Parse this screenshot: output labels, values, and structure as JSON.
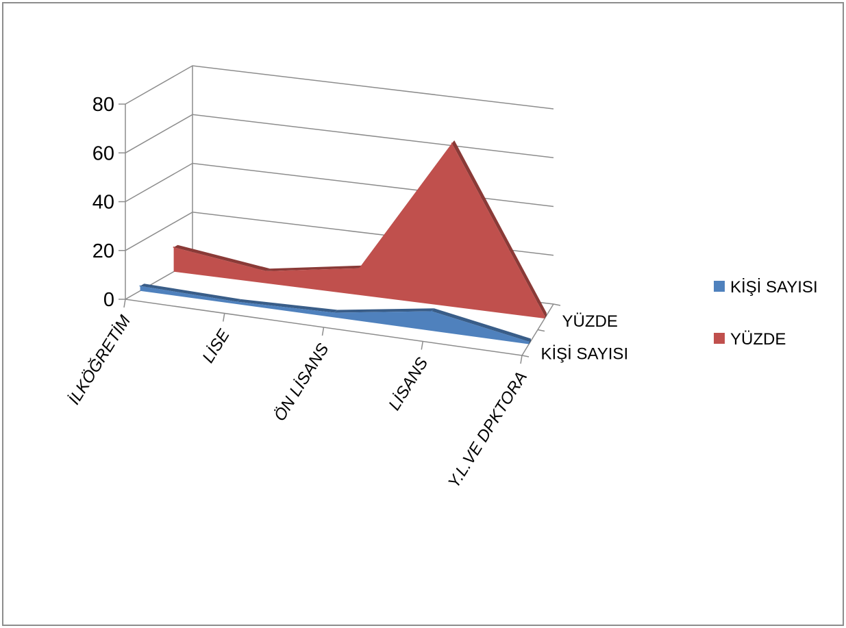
{
  "chart_data": {
    "type": "area",
    "categories": [
      "İLKÖĞRETİM",
      "LİSE",
      "ÖN LİSANS",
      "LİSANS",
      "Y.L.VE DPKTORA"
    ],
    "series": [
      {
        "name": "KİŞİ SAYISI",
        "values": [
          2,
          1,
          2,
          8,
          1
        ],
        "color": "#4F81BD"
      },
      {
        "name": "YÜZDE",
        "values": [
          10,
          5,
          11,
          67,
          1
        ],
        "color": "#C0504D"
      }
    ],
    "yticks": [
      "0",
      "20",
      "40",
      "60",
      "80"
    ],
    "ylim": [
      0,
      80
    ],
    "depth_labels": [
      "YÜZDE",
      "KİŞİ SAYISI"
    ],
    "legend": [
      {
        "label": "KİŞİ SAYISI",
        "color": "#4F81BD"
      },
      {
        "label": "YÜZDE",
        "color": "#C0504D"
      }
    ],
    "legend_position": "right",
    "grid": true,
    "style": "3d-area"
  }
}
